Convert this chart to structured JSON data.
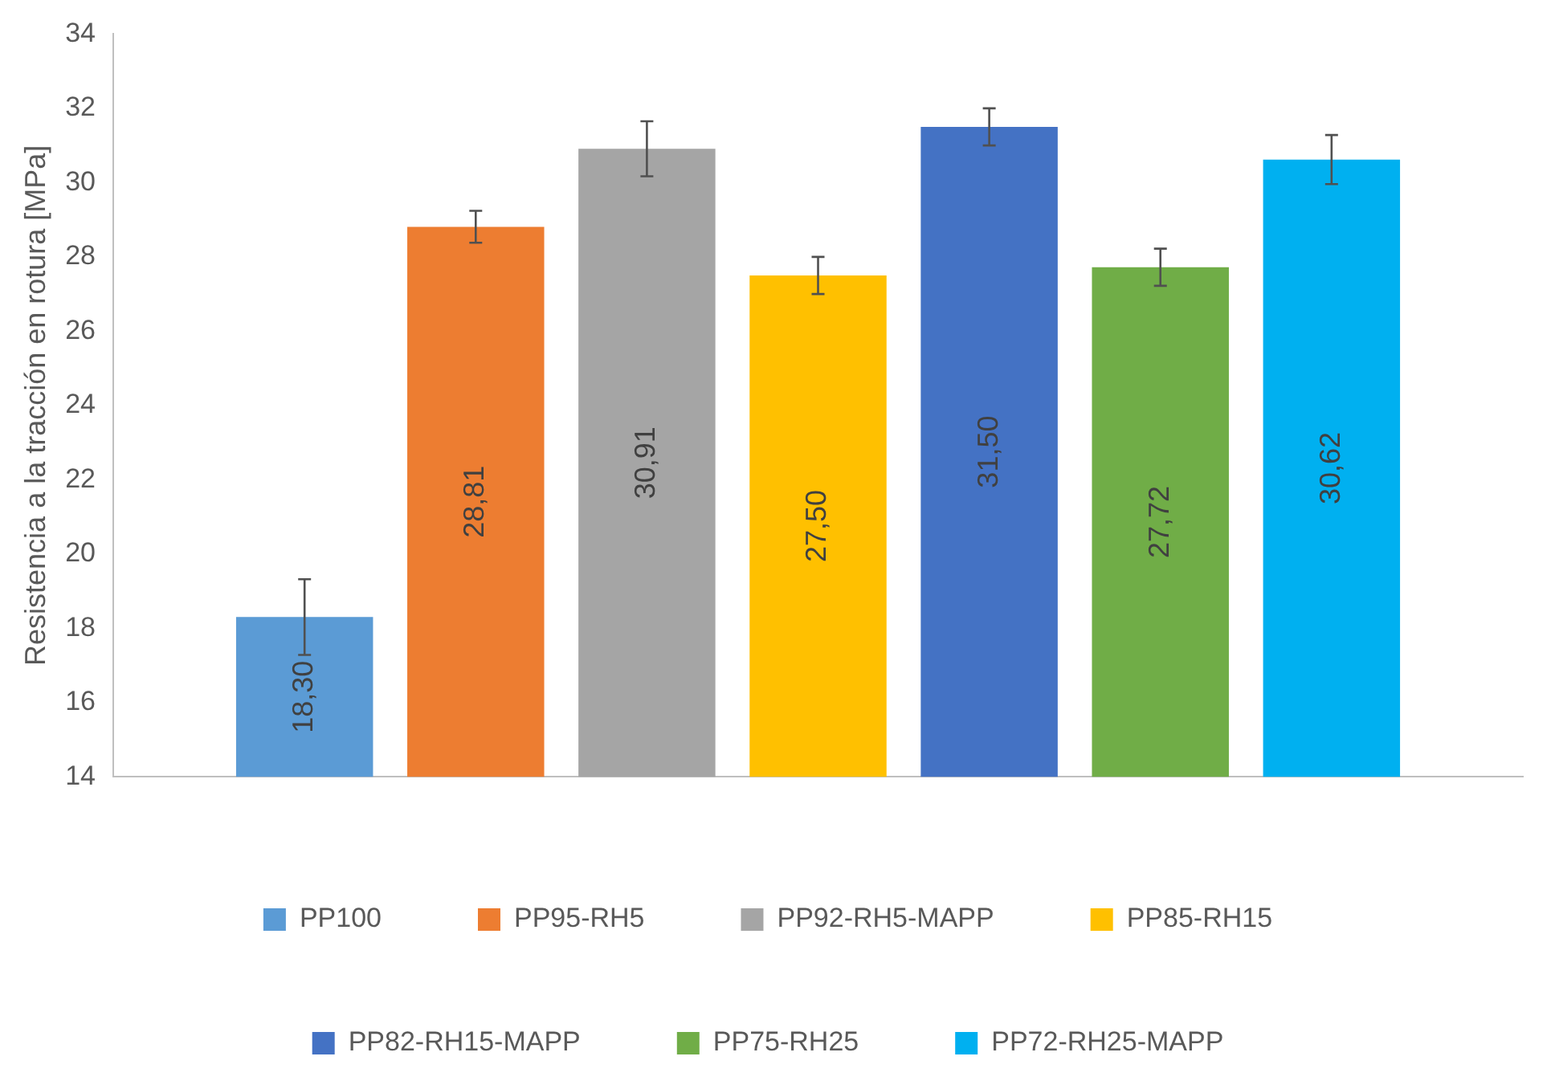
{
  "chart_data": {
    "type": "bar",
    "ylabel": "Resistencia a la tracción en rotura [MPa]",
    "categories": [
      null
    ],
    "series": [
      {
        "name": "PP100",
        "color": "#5b9bd5",
        "values": [
          18.3
        ],
        "errors": [
          1.02
        ],
        "value_labels": [
          "18,30"
        ]
      },
      {
        "name": "PP95-RH5",
        "color": "#ed7d31",
        "values": [
          28.81
        ],
        "errors": [
          0.43
        ],
        "value_labels": [
          "28,81"
        ]
      },
      {
        "name": "PP92-RH5-MAPP",
        "color": "#a5a5a5",
        "values": [
          30.91
        ],
        "errors": [
          0.74
        ],
        "value_labels": [
          "30,91"
        ]
      },
      {
        "name": "PP85-RH15",
        "color": "#ffc000",
        "values": [
          27.5
        ],
        "errors": [
          0.5
        ],
        "value_labels": [
          "27,50"
        ]
      },
      {
        "name": "PP82-RH15-MAPP",
        "color": "#4472c4",
        "values": [
          31.5
        ],
        "errors": [
          0.5
        ],
        "value_labels": [
          "31,50"
        ]
      },
      {
        "name": "PP75-RH25",
        "color": "#70ad47",
        "values": [
          27.72
        ],
        "errors": [
          0.5
        ],
        "value_labels": [
          "27,72"
        ]
      },
      {
        "name": "PP72-RH25-MAPP",
        "color": "#00b0f0",
        "values": [
          30.62
        ],
        "errors": [
          0.66
        ],
        "value_labels": [
          "30,62"
        ]
      }
    ],
    "ylim": [
      14,
      34
    ],
    "yticks": [
      14,
      16,
      18,
      20,
      22,
      24,
      26,
      28,
      30,
      32,
      34
    ],
    "grid": false,
    "legend": "bottom"
  }
}
